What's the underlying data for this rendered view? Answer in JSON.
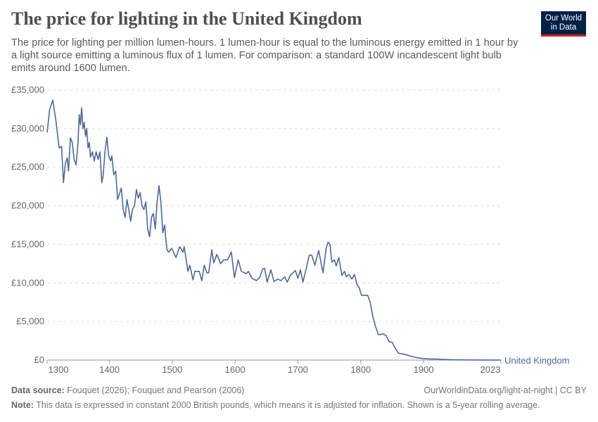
{
  "header": {
    "title": "The price for lighting in the United Kingdom",
    "subtitle": "The price for lighting per million lumen-hours. 1 lumen-hour is equal to the luminous energy emitted in 1 hour by a light source emitting a luminous flux of 1 lumen. For comparison: a standard 100W incandescent light bulb emits around 1600 lumen.",
    "logo_line1": "Our World",
    "logo_line2": "in Data"
  },
  "footer": {
    "source_label": "Data source:",
    "source_text": "Fouquet (2026); Fouquet and Pearson (2006)",
    "url": "OurWorldinData.org/light-at-night | CC BY",
    "note_label": "Note:",
    "note_text": "This data is expressed in constant 2000 British pounds, which means it is adjusted for inflation. Shown is a 5-year rolling average."
  },
  "chart_data": {
    "type": "line",
    "title": "The price for lighting in the United Kingdom",
    "xlabel": "",
    "ylabel": "",
    "xlim": [
      1301,
      2023
    ],
    "ylim": [
      0,
      35000
    ],
    "grid": "horizontal dashed",
    "line_color": "#4c6a9c",
    "y_ticks": [
      {
        "v": 0,
        "label": "£0"
      },
      {
        "v": 5000,
        "label": "£5,000"
      },
      {
        "v": 10000,
        "label": "£10,000"
      },
      {
        "v": 15000,
        "label": "£15,000"
      },
      {
        "v": 20000,
        "label": "£20,000"
      },
      {
        "v": 25000,
        "label": "£25,000"
      },
      {
        "v": 30000,
        "label": "£30,000"
      },
      {
        "v": 35000,
        "label": "£35,000"
      }
    ],
    "x_ticks": [
      {
        "v": 1301,
        "label": "1300"
      },
      {
        "v": 1400,
        "label": "1400"
      },
      {
        "v": 1500,
        "label": "1500"
      },
      {
        "v": 1600,
        "label": "1600"
      },
      {
        "v": 1700,
        "label": "1700"
      },
      {
        "v": 1800,
        "label": "1800"
      },
      {
        "v": 1900,
        "label": "1900"
      },
      {
        "v": 2023,
        "label": "2023"
      }
    ],
    "series": [
      {
        "name": "United Kingdom",
        "x": [
          1301,
          1305,
          1310,
          1315,
          1320,
          1324,
          1327,
          1330,
          1333,
          1335,
          1338,
          1341,
          1344,
          1347,
          1350,
          1352,
          1354,
          1356,
          1358,
          1360,
          1362,
          1364,
          1366,
          1368,
          1370,
          1373,
          1376,
          1379,
          1382,
          1385,
          1388,
          1390,
          1393,
          1396,
          1399,
          1402,
          1404,
          1407,
          1410,
          1413,
          1416,
          1419,
          1422,
          1425,
          1428,
          1431,
          1434,
          1437,
          1440,
          1443,
          1446,
          1449,
          1452,
          1455,
          1458,
          1461,
          1464,
          1467,
          1470,
          1473,
          1476,
          1479,
          1482,
          1485,
          1488,
          1490,
          1492,
          1495,
          1499,
          1506,
          1512,
          1517,
          1519,
          1525,
          1528,
          1533,
          1536,
          1543,
          1547,
          1551,
          1555,
          1558,
          1563,
          1566,
          1571,
          1577,
          1582,
          1588,
          1594,
          1599,
          1605,
          1610,
          1618,
          1621,
          1627,
          1634,
          1639,
          1644,
          1647,
          1651,
          1657,
          1662,
          1668,
          1673,
          1679,
          1683,
          1688,
          1696,
          1700,
          1704,
          1708,
          1713,
          1718,
          1722,
          1727,
          1733,
          1740,
          1745,
          1748,
          1751,
          1754,
          1758,
          1761,
          1765,
          1770,
          1774,
          1777,
          1781,
          1786,
          1790,
          1794,
          1798,
          1801,
          1811,
          1815,
          1819,
          1823,
          1828,
          1830,
          1835,
          1840,
          1845,
          1850,
          1855,
          1860,
          1870,
          1880,
          1890,
          1900,
          1910,
          1920,
          1930,
          1950,
          1980,
          2023
        ],
        "values": [
          29500,
          32500,
          33700,
          31000,
          27500,
          27700,
          23000,
          25500,
          26200,
          24500,
          28800,
          28200,
          26000,
          25300,
          28000,
          31800,
          30500,
          32700,
          30000,
          30800,
          29000,
          30000,
          27500,
          28200,
          26300,
          27000,
          25800,
          27000,
          26000,
          27000,
          23000,
          23800,
          27000,
          28900,
          26500,
          25800,
          26500,
          24000,
          24500,
          20800,
          21500,
          22300,
          19500,
          18500,
          20800,
          19500,
          18000,
          19600,
          20000,
          22100,
          21000,
          21700,
          20000,
          19500,
          20500,
          17000,
          16000,
          18500,
          19000,
          17000,
          20500,
          22600,
          20500,
          16500,
          17500,
          15500,
          14200,
          14000,
          14500,
          13300,
          14700,
          14000,
          14700,
          11500,
          12300,
          10400,
          11500,
          11500,
          10300,
          12300,
          11300,
          11300,
          14300,
          12600,
          13700,
          12500,
          13000,
          13000,
          14000,
          10700,
          13000,
          11500,
          11200,
          11500,
          10600,
          10300,
          10700,
          11800,
          11900,
          10100,
          11700,
          10200,
          10500,
          10300,
          10800,
          10100,
          11000,
          11600,
          10600,
          11700,
          10100,
          11800,
          13600,
          13600,
          12300,
          14200,
          11300,
          14500,
          15300,
          15000,
          12700,
          13000,
          12200,
          13300,
          11000,
          11500,
          10800,
          11100,
          10500,
          11100,
          9800,
          9300,
          8400,
          8400,
          7500,
          5700,
          4500,
          3300,
          3300,
          3400,
          3200,
          2400,
          2300,
          1500,
          900,
          750,
          500,
          300,
          200,
          150,
          150,
          80,
          40,
          15,
          5
        ]
      }
    ]
  }
}
